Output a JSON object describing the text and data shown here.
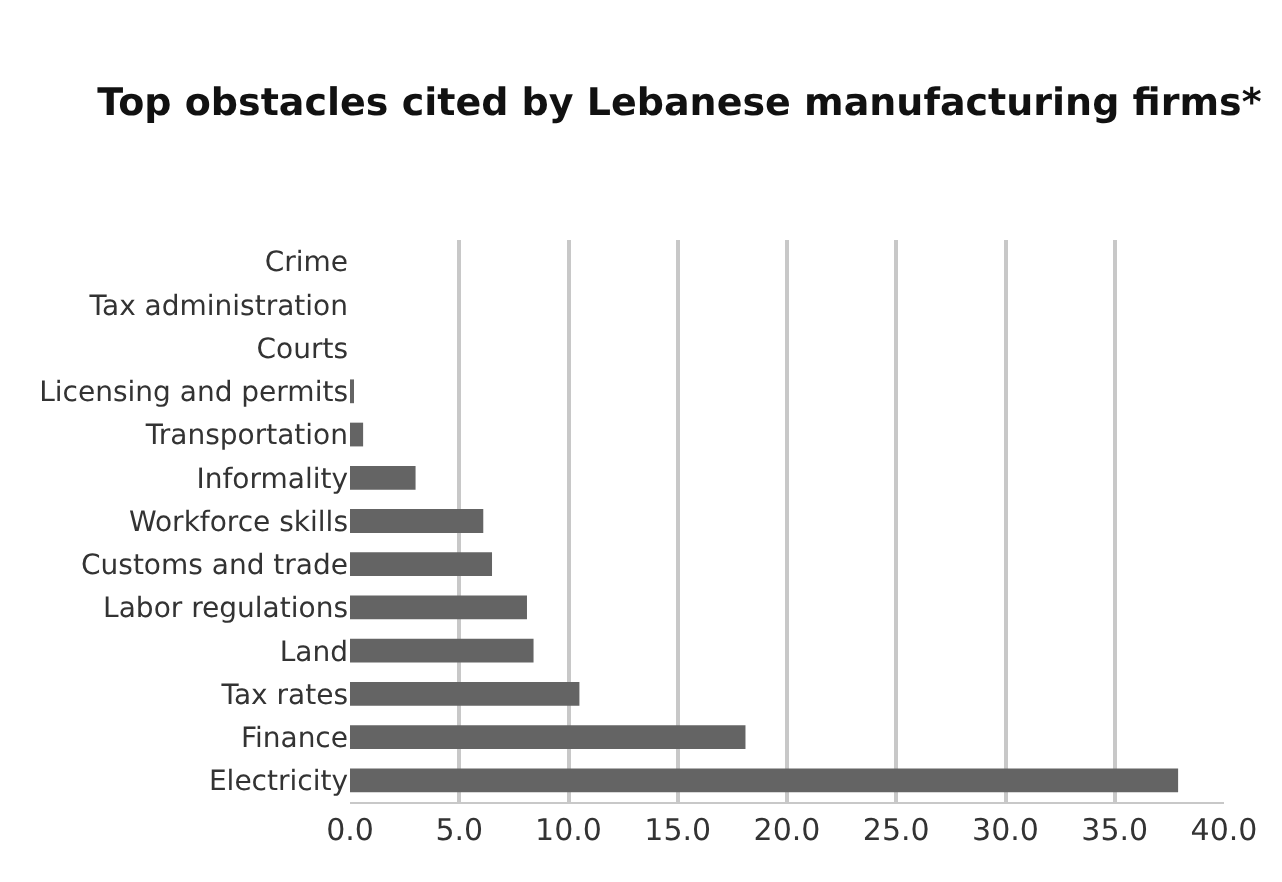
{
  "chart_data": {
    "type": "bar",
    "orientation": "horizontal",
    "title": "Top obstacles cited by Lebanese manufacturing firms*",
    "categories": [
      "Crime",
      "Tax administration",
      "Courts",
      "Licensing and permits",
      "Transportation",
      "Informality",
      "Workforce skills",
      "Customs and trade",
      "Labor regulations",
      "Land",
      "Tax rates",
      "Finance",
      "Electricity"
    ],
    "values": [
      0,
      0,
      0,
      0.1,
      0.6,
      3.0,
      6.1,
      6.5,
      8.1,
      8.4,
      10.5,
      18.1,
      37.9
    ],
    "color": "#646464",
    "xlim": [
      0,
      40
    ],
    "xticks": [
      {
        "value": 0,
        "label": "0.0"
      },
      {
        "value": 5,
        "label": "5.0"
      },
      {
        "value": 10,
        "label": "10.0"
      },
      {
        "value": 15,
        "label": "15.0"
      },
      {
        "value": 20,
        "label": "20.0"
      },
      {
        "value": 25,
        "label": "25.0"
      },
      {
        "value": 30,
        "label": "30.0"
      },
      {
        "value": 35,
        "label": "35.0"
      },
      {
        "value": 40,
        "label": "40.0"
      }
    ],
    "grid": "x"
  }
}
